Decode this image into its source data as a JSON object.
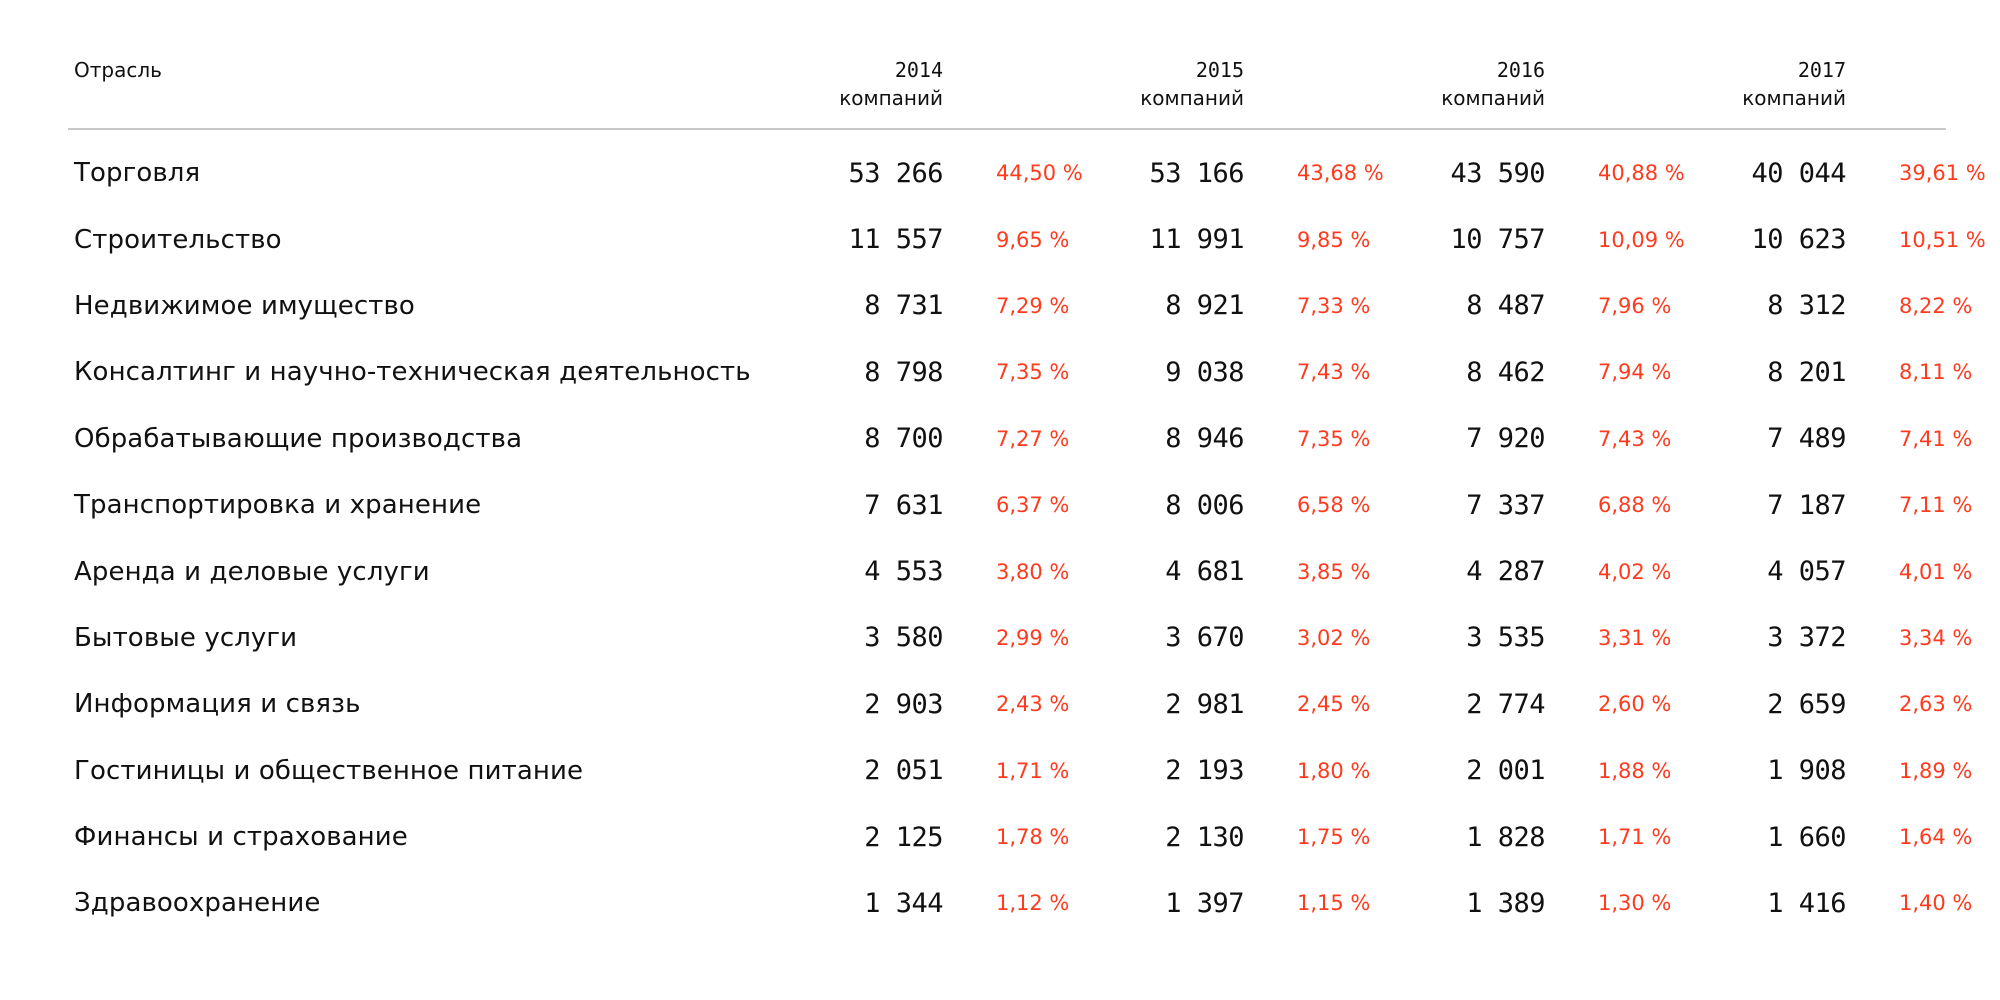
{
  "table": {
    "header": {
      "industry_label": "Отрасль",
      "unit_label": "компаний",
      "years": [
        "2014",
        "2015",
        "2016",
        "2017"
      ]
    },
    "rows": [
      {
        "industry": "Торговля",
        "values": [
          {
            "count": "53 266",
            "share": "44,50 %"
          },
          {
            "count": "53 166",
            "share": "43,68 %"
          },
          {
            "count": "43 590",
            "share": "40,88 %"
          },
          {
            "count": "40 044",
            "share": "39,61 %"
          }
        ]
      },
      {
        "industry": "Строительство",
        "values": [
          {
            "count": "11 557",
            "share": "9,65 %"
          },
          {
            "count": "11 991",
            "share": "9,85 %"
          },
          {
            "count": "10 757",
            "share": "10,09 %"
          },
          {
            "count": "10 623",
            "share": "10,51 %"
          }
        ]
      },
      {
        "industry": "Недвижимое имущество",
        "values": [
          {
            "count": "8 731",
            "share": "7,29 %"
          },
          {
            "count": "8 921",
            "share": "7,33 %"
          },
          {
            "count": "8 487",
            "share": "7,96 %"
          },
          {
            "count": "8 312",
            "share": "8,22 %"
          }
        ]
      },
      {
        "industry": "Консалтинг и научно-техническая деятельность",
        "values": [
          {
            "count": "8 798",
            "share": "7,35 %"
          },
          {
            "count": "9 038",
            "share": "7,43 %"
          },
          {
            "count": "8 462",
            "share": "7,94 %"
          },
          {
            "count": "8 201",
            "share": "8,11 %"
          }
        ]
      },
      {
        "industry": "Обрабатывающие производства",
        "values": [
          {
            "count": "8 700",
            "share": "7,27 %"
          },
          {
            "count": "8 946",
            "share": "7,35 %"
          },
          {
            "count": "7 920",
            "share": "7,43 %"
          },
          {
            "count": "7 489",
            "share": "7,41 %"
          }
        ]
      },
      {
        "industry": "Транспортировка и хранение",
        "values": [
          {
            "count": "7 631",
            "share": "6,37 %"
          },
          {
            "count": "8 006",
            "share": "6,58 %"
          },
          {
            "count": "7 337",
            "share": "6,88 %"
          },
          {
            "count": "7 187",
            "share": "7,11 %"
          }
        ]
      },
      {
        "industry": "Аренда и деловые услуги",
        "values": [
          {
            "count": "4 553",
            "share": "3,80 %"
          },
          {
            "count": "4 681",
            "share": "3,85 %"
          },
          {
            "count": "4 287",
            "share": "4,02 %"
          },
          {
            "count": "4 057",
            "share": "4,01 %"
          }
        ]
      },
      {
        "industry": "Бытовые услуги",
        "values": [
          {
            "count": "3 580",
            "share": "2,99 %"
          },
          {
            "count": "3 670",
            "share": "3,02 %"
          },
          {
            "count": "3 535",
            "share": "3,31 %"
          },
          {
            "count": "3 372",
            "share": "3,34 %"
          }
        ]
      },
      {
        "industry": "Информация и связь",
        "values": [
          {
            "count": "2 903",
            "share": "2,43 %"
          },
          {
            "count": "2 981",
            "share": "2,45 %"
          },
          {
            "count": "2 774",
            "share": "2,60 %"
          },
          {
            "count": "2 659",
            "share": "2,63 %"
          }
        ]
      },
      {
        "industry": "Гостиницы и общественное питание",
        "values": [
          {
            "count": "2 051",
            "share": "1,71 %"
          },
          {
            "count": "2 193",
            "share": "1,80 %"
          },
          {
            "count": "2 001",
            "share": "1,88 %"
          },
          {
            "count": "1 908",
            "share": "1,89 %"
          }
        ]
      },
      {
        "industry": "Финансы и страхование",
        "values": [
          {
            "count": "2 125",
            "share": "1,78 %"
          },
          {
            "count": "2 130",
            "share": "1,75 %"
          },
          {
            "count": "1 828",
            "share": "1,71 %"
          },
          {
            "count": "1 660",
            "share": "1,64 %"
          }
        ]
      },
      {
        "industry": "Здравоохранение",
        "values": [
          {
            "count": "1 344",
            "share": "1,12 %"
          },
          {
            "count": "1 397",
            "share": "1,15 %"
          },
          {
            "count": "1 389",
            "share": "1,30 %"
          },
          {
            "count": "1 416",
            "share": "1,40 %"
          }
        ]
      }
    ],
    "colors": {
      "text": "#111111",
      "share": "#ff3b1f",
      "rule": "#c8c8c8"
    }
  }
}
